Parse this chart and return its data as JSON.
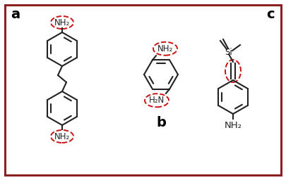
{
  "bg_color": "#ffffff",
  "border_color": "#8b2020",
  "border_lw": 2.2,
  "label_a": "a",
  "label_b": "b",
  "label_c": "c",
  "label_nh2": "NH₂",
  "label_h2n": "H₂N",
  "label_si": "Si",
  "dashed_circle_color": "#cc1111",
  "structure_color": "#222222",
  "nh2_font_size": 8.5
}
